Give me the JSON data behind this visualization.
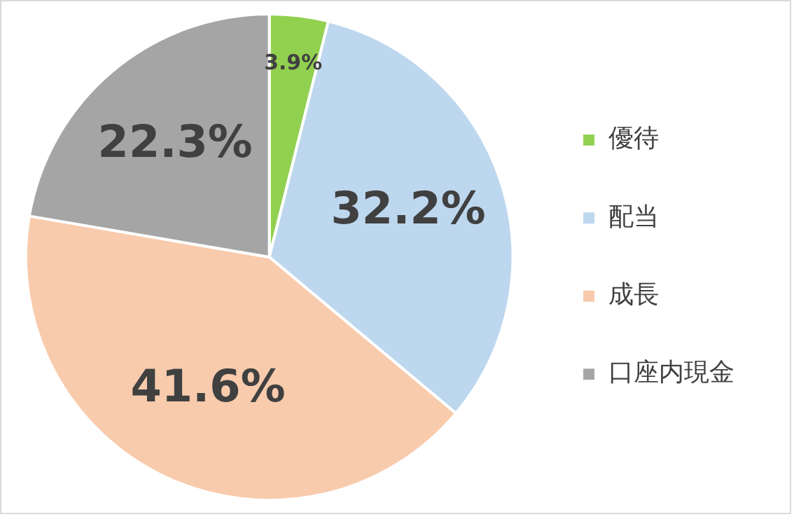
{
  "chart_data": {
    "type": "pie",
    "categories": [
      "優待",
      "配当",
      "成長",
      "口座内現金"
    ],
    "values": [
      3.9,
      32.2,
      41.6,
      22.3
    ],
    "colors": [
      "#92d050",
      "#bdd7ee",
      "#f8cbad",
      "#a5a5a5"
    ],
    "value_labels": [
      "3.9%",
      "32.2%",
      "41.6%",
      "22.3%"
    ],
    "legend": "right"
  }
}
